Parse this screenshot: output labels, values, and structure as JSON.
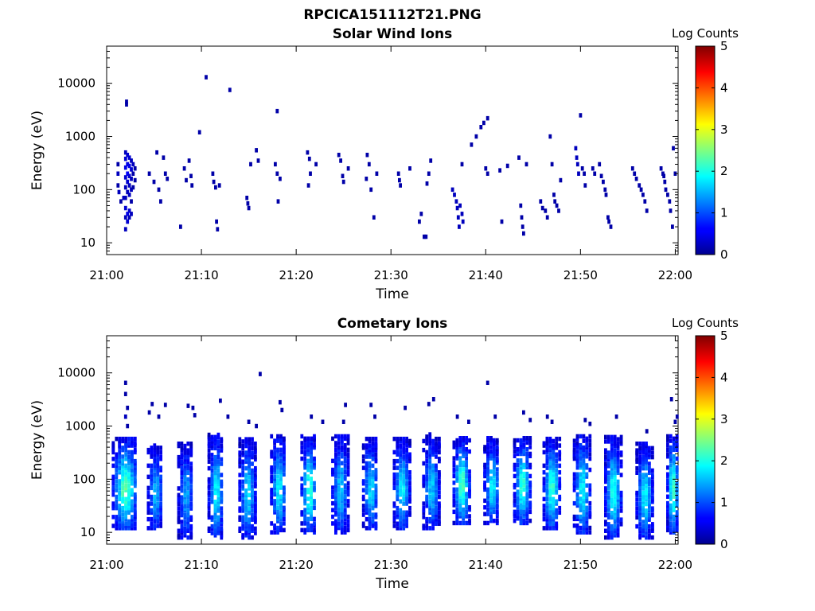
{
  "figure": {
    "title": "RPCICA151112T21.PNG"
  },
  "chart_data": [
    {
      "type": "heatmap",
      "title": "Solar Wind Ions",
      "xlabel": "Time",
      "ylabel": "Energy (eV)",
      "x_ticks": [
        "21:00",
        "21:10",
        "21:20",
        "21:30",
        "21:40",
        "21:50",
        "22:00"
      ],
      "x_range_minutes": [
        0,
        60.3
      ],
      "y_scale": "log",
      "y_range": [
        6,
        50000
      ],
      "y_ticks": [
        {
          "value": 10,
          "label": "10"
        },
        {
          "value": 100,
          "label": "100"
        },
        {
          "value": 1000,
          "label": "1000"
        },
        {
          "value": 10000,
          "label": "10000"
        }
      ],
      "colorbar": {
        "label": "Log Counts",
        "range": [
          0,
          5
        ],
        "ticks": [
          "0",
          "1",
          "2",
          "3",
          "4",
          "5"
        ],
        "colormap": "jet"
      },
      "cells": [
        [
          1.2,
          300,
          0.2
        ],
        [
          1.2,
          200,
          0.3
        ],
        [
          1.2,
          120,
          0.2
        ],
        [
          1.3,
          90,
          0.3
        ],
        [
          1.5,
          60,
          0.2
        ],
        [
          1.8,
          70,
          0.3
        ],
        [
          2.0,
          500,
          0.3
        ],
        [
          2.0,
          380,
          0.4
        ],
        [
          2.0,
          260,
          0.5
        ],
        [
          2.0,
          170,
          0.4
        ],
        [
          2.0,
          110,
          0.3
        ],
        [
          2.0,
          70,
          0.3
        ],
        [
          2.0,
          45,
          0.4
        ],
        [
          2.0,
          30,
          0.3
        ],
        [
          2.0,
          18,
          0.3
        ],
        [
          2.2,
          450,
          0.4
        ],
        [
          2.2,
          300,
          0.5
        ],
        [
          2.2,
          200,
          0.6
        ],
        [
          2.2,
          140,
          0.4
        ],
        [
          2.2,
          90,
          0.3
        ],
        [
          2.2,
          35,
          0.5
        ],
        [
          2.2,
          25,
          0.4
        ],
        [
          2.4,
          400,
          0.4
        ],
        [
          2.4,
          280,
          0.5
        ],
        [
          2.4,
          180,
          0.4
        ],
        [
          2.4,
          120,
          0.3
        ],
        [
          2.4,
          80,
          0.3
        ],
        [
          2.4,
          40,
          0.4
        ],
        [
          2.4,
          30,
          0.3
        ],
        [
          2.6,
          350,
          0.3
        ],
        [
          2.6,
          240,
          0.4
        ],
        [
          2.6,
          160,
          0.3
        ],
        [
          2.6,
          100,
          0.3
        ],
        [
          2.6,
          60,
          0.2
        ],
        [
          2.6,
          35,
          0.3
        ],
        [
          2.8,
          300,
          0.3
        ],
        [
          2.8,
          200,
          0.2
        ],
        [
          2.8,
          110,
          0.2
        ],
        [
          3.0,
          250,
          0.2
        ],
        [
          3.0,
          150,
          0.2
        ],
        [
          2.1,
          4500,
          0.2
        ],
        [
          2.1,
          4000,
          0.2
        ],
        [
          4.5,
          200,
          0.2
        ],
        [
          5.0,
          140,
          0.2
        ],
        [
          5.3,
          500,
          0.2
        ],
        [
          5.5,
          100,
          0.2
        ],
        [
          5.7,
          60,
          0.2
        ],
        [
          6.0,
          400,
          0.2
        ],
        [
          6.2,
          200,
          0.2
        ],
        [
          6.4,
          160,
          0.2
        ],
        [
          7.8,
          20,
          0.2
        ],
        [
          8.2,
          250,
          0.2
        ],
        [
          8.4,
          150,
          0.2
        ],
        [
          8.7,
          350,
          0.2
        ],
        [
          8.9,
          180,
          0.2
        ],
        [
          9.0,
          120,
          0.2
        ],
        [
          9.8,
          1200,
          0.2
        ],
        [
          10.5,
          13000,
          0.2
        ],
        [
          11.2,
          200,
          0.2
        ],
        [
          11.3,
          140,
          0.2
        ],
        [
          11.5,
          110,
          0.2
        ],
        [
          11.6,
          25,
          0.2
        ],
        [
          11.7,
          18,
          0.2
        ],
        [
          11.9,
          120,
          0.2
        ],
        [
          13.0,
          7500,
          0.2
        ],
        [
          14.8,
          70,
          0.2
        ],
        [
          14.9,
          55,
          0.2
        ],
        [
          15.0,
          45,
          0.2
        ],
        [
          15.2,
          300,
          0.2
        ],
        [
          15.8,
          550,
          0.2
        ],
        [
          16.0,
          350,
          0.2
        ],
        [
          18.0,
          3000,
          0.2
        ],
        [
          17.8,
          300,
          0.2
        ],
        [
          18.0,
          200,
          0.2
        ],
        [
          18.1,
          60,
          0.2
        ],
        [
          18.3,
          160,
          0.2
        ],
        [
          21.2,
          500,
          0.2
        ],
        [
          21.4,
          380,
          0.2
        ],
        [
          21.3,
          120,
          0.2
        ],
        [
          21.5,
          200,
          0.2
        ],
        [
          22.1,
          300,
          0.2
        ],
        [
          24.5,
          450,
          0.2
        ],
        [
          24.7,
          350,
          0.2
        ],
        [
          24.9,
          180,
          0.2
        ],
        [
          25.0,
          140,
          0.2
        ],
        [
          25.5,
          250,
          0.2
        ],
        [
          27.5,
          450,
          0.2
        ],
        [
          27.7,
          300,
          0.2
        ],
        [
          27.4,
          160,
          0.2
        ],
        [
          27.9,
          100,
          0.2
        ],
        [
          28.2,
          30,
          0.2
        ],
        [
          28.5,
          200,
          0.2
        ],
        [
          30.8,
          200,
          0.2
        ],
        [
          30.9,
          150,
          0.2
        ],
        [
          31.0,
          120,
          0.2
        ],
        [
          32.0,
          250,
          0.2
        ],
        [
          33.0,
          25,
          0.2
        ],
        [
          33.2,
          35,
          0.2
        ],
        [
          33.5,
          13,
          0.2
        ],
        [
          33.7,
          13,
          0.2
        ],
        [
          33.8,
          130,
          0.2
        ],
        [
          34.0,
          200,
          0.2
        ],
        [
          34.2,
          350,
          0.2
        ],
        [
          36.5,
          100,
          0.3
        ],
        [
          36.7,
          80,
          0.3
        ],
        [
          36.9,
          60,
          0.3
        ],
        [
          37.0,
          45,
          0.3
        ],
        [
          37.1,
          30,
          0.3
        ],
        [
          37.2,
          20,
          0.3
        ],
        [
          37.3,
          50,
          0.3
        ],
        [
          37.5,
          35,
          0.3
        ],
        [
          37.6,
          25,
          0.3
        ],
        [
          37.5,
          300,
          0.2
        ],
        [
          38.5,
          700,
          0.2
        ],
        [
          39.0,
          1000,
          0.2
        ],
        [
          39.5,
          1500,
          0.2
        ],
        [
          39.8,
          1800,
          0.2
        ],
        [
          40.2,
          2200,
          0.2
        ],
        [
          40.0,
          250,
          0.2
        ],
        [
          40.2,
          200,
          0.2
        ],
        [
          41.5,
          230,
          0.2
        ],
        [
          41.7,
          25,
          0.2
        ],
        [
          42.3,
          280,
          0.2
        ],
        [
          43.5,
          400,
          0.2
        ],
        [
          43.7,
          50,
          0.2
        ],
        [
          43.8,
          30,
          0.2
        ],
        [
          43.9,
          20,
          0.2
        ],
        [
          44.0,
          15,
          0.2
        ],
        [
          44.3,
          300,
          0.2
        ],
        [
          45.8,
          60,
          0.2
        ],
        [
          46.0,
          45,
          0.2
        ],
        [
          46.3,
          40,
          0.2
        ],
        [
          46.5,
          30,
          0.2
        ],
        [
          46.8,
          1000,
          0.2
        ],
        [
          47.0,
          300,
          0.2
        ],
        [
          47.2,
          80,
          0.2
        ],
        [
          47.3,
          60,
          0.2
        ],
        [
          47.5,
          50,
          0.2
        ],
        [
          47.7,
          40,
          0.2
        ],
        [
          47.9,
          150,
          0.2
        ],
        [
          49.5,
          600,
          0.3
        ],
        [
          49.6,
          400,
          0.3
        ],
        [
          49.7,
          300,
          0.3
        ],
        [
          49.8,
          200,
          0.3
        ],
        [
          50.0,
          2500,
          0.2
        ],
        [
          50.2,
          250,
          0.2
        ],
        [
          50.4,
          200,
          0.2
        ],
        [
          50.5,
          120,
          0.2
        ],
        [
          51.3,
          250,
          0.2
        ],
        [
          51.5,
          200,
          0.2
        ],
        [
          52.0,
          300,
          0.2
        ],
        [
          52.2,
          180,
          0.2
        ],
        [
          52.4,
          140,
          0.2
        ],
        [
          52.6,
          100,
          0.2
        ],
        [
          52.7,
          80,
          0.2
        ],
        [
          52.9,
          30,
          0.2
        ],
        [
          53.0,
          25,
          0.2
        ],
        [
          53.2,
          20,
          0.2
        ],
        [
          55.5,
          250,
          0.2
        ],
        [
          55.7,
          200,
          0.2
        ],
        [
          55.9,
          160,
          0.2
        ],
        [
          56.2,
          120,
          0.2
        ],
        [
          56.4,
          100,
          0.2
        ],
        [
          56.6,
          80,
          0.2
        ],
        [
          56.8,
          60,
          0.2
        ],
        [
          57.0,
          40,
          0.2
        ],
        [
          58.5,
          250,
          0.2
        ],
        [
          58.7,
          200,
          0.2
        ],
        [
          58.8,
          180,
          0.2
        ],
        [
          58.9,
          140,
          0.2
        ],
        [
          59.0,
          100,
          0.2
        ],
        [
          59.2,
          80,
          0.2
        ],
        [
          59.4,
          60,
          0.2
        ],
        [
          59.5,
          40,
          0.2
        ],
        [
          59.7,
          20,
          0.2
        ],
        [
          60.0,
          200,
          0.2
        ],
        [
          59.8,
          600,
          0.2
        ]
      ]
    },
    {
      "type": "heatmap",
      "title": "Cometary Ions",
      "xlabel": "Time",
      "ylabel": "Energy (eV)",
      "x_ticks": [
        "21:00",
        "21:10",
        "21:20",
        "21:30",
        "21:40",
        "21:50",
        "22:00"
      ],
      "x_range_minutes": [
        0,
        60.3
      ],
      "y_scale": "log",
      "y_range": [
        6,
        50000
      ],
      "y_ticks": [
        {
          "value": 10,
          "label": "10"
        },
        {
          "value": 100,
          "label": "100"
        },
        {
          "value": 1000,
          "label": "1000"
        },
        {
          "value": 10000,
          "label": "10000"
        }
      ],
      "colorbar": {
        "label": "Log Counts",
        "range": [
          0,
          5
        ],
        "ticks": [
          "0",
          "1",
          "2",
          "3",
          "4",
          "5"
        ],
        "colormap": "jet"
      },
      "bursts": [
        {
          "t": 2.0,
          "elo": 12,
          "ehi": 600,
          "peak": 2.0,
          "width": 2.6
        },
        {
          "t": 5.2,
          "elo": 12,
          "ehi": 450,
          "peak": 1.2,
          "width": 1.6
        },
        {
          "t": 8.4,
          "elo": 8,
          "ehi": 500,
          "peak": 1.1,
          "width": 1.6
        },
        {
          "t": 11.6,
          "elo": 8,
          "ehi": 700,
          "peak": 1.5,
          "width": 1.6
        },
        {
          "t": 14.9,
          "elo": 8,
          "ehi": 600,
          "peak": 1.4,
          "width": 1.7
        },
        {
          "t": 18.2,
          "elo": 10,
          "ehi": 700,
          "peak": 1.5,
          "width": 1.6
        },
        {
          "t": 21.4,
          "elo": 10,
          "ehi": 650,
          "peak": 1.8,
          "width": 1.6
        },
        {
          "t": 24.7,
          "elo": 10,
          "ehi": 700,
          "peak": 1.3,
          "width": 1.7
        },
        {
          "t": 27.9,
          "elo": 12,
          "ehi": 600,
          "peak": 1.4,
          "width": 1.6
        },
        {
          "t": 31.2,
          "elo": 12,
          "ehi": 600,
          "peak": 1.5,
          "width": 1.7
        },
        {
          "t": 34.3,
          "elo": 12,
          "ehi": 700,
          "peak": 1.3,
          "width": 1.7
        },
        {
          "t": 37.5,
          "elo": 15,
          "ehi": 650,
          "peak": 1.9,
          "width": 1.7
        },
        {
          "t": 40.7,
          "elo": 15,
          "ehi": 600,
          "peak": 1.5,
          "width": 1.6
        },
        {
          "t": 43.9,
          "elo": 15,
          "ehi": 650,
          "peak": 1.8,
          "width": 1.7
        },
        {
          "t": 47.0,
          "elo": 12,
          "ehi": 600,
          "peak": 1.8,
          "width": 1.7
        },
        {
          "t": 50.2,
          "elo": 10,
          "ehi": 700,
          "peak": 1.6,
          "width": 1.7
        },
        {
          "t": 53.5,
          "elo": 8,
          "ehi": 650,
          "peak": 1.7,
          "width": 1.7
        },
        {
          "t": 56.8,
          "elo": 8,
          "ehi": 500,
          "peak": 1.5,
          "width": 1.7
        },
        {
          "t": 59.8,
          "elo": 10,
          "ehi": 700,
          "peak": 1.9,
          "width": 1.2
        }
      ],
      "cells": [
        [
          2.0,
          6500,
          0.2
        ],
        [
          2.0,
          4000,
          0.2
        ],
        [
          2.2,
          2200,
          0.2
        ],
        [
          2.0,
          1500,
          0.3
        ],
        [
          2.2,
          1000,
          0.2
        ],
        [
          4.5,
          1800,
          0.2
        ],
        [
          5.5,
          1500,
          0.2
        ],
        [
          6.2,
          2500,
          0.2
        ],
        [
          4.8,
          2600,
          0.2
        ],
        [
          8.6,
          2400,
          0.2
        ],
        [
          9.1,
          2200,
          0.2
        ],
        [
          9.3,
          1600,
          0.2
        ],
        [
          12.0,
          3000,
          0.2
        ],
        [
          12.8,
          1500,
          0.2
        ],
        [
          15.0,
          1200,
          0.2
        ],
        [
          15.8,
          1000,
          0.2
        ],
        [
          16.2,
          9500,
          0.2
        ],
        [
          18.3,
          2800,
          0.2
        ],
        [
          18.5,
          2000,
          0.2
        ],
        [
          21.6,
          1500,
          0.2
        ],
        [
          22.8,
          1200,
          0.2
        ],
        [
          25.2,
          2500,
          0.2
        ],
        [
          25.0,
          1200,
          0.2
        ],
        [
          27.9,
          2500,
          0.2
        ],
        [
          28.3,
          1500,
          0.2
        ],
        [
          31.5,
          2200,
          0.2
        ],
        [
          34.5,
          3200,
          0.2
        ],
        [
          34.0,
          2600,
          0.2
        ],
        [
          37.0,
          1500,
          0.2
        ],
        [
          38.2,
          1200,
          0.2
        ],
        [
          40.2,
          6500,
          0.2
        ],
        [
          41.0,
          1500,
          0.2
        ],
        [
          44.0,
          1800,
          0.2
        ],
        [
          44.7,
          1300,
          0.2
        ],
        [
          46.5,
          1500,
          0.2
        ],
        [
          47.0,
          1200,
          0.2
        ],
        [
          50.5,
          1300,
          0.2
        ],
        [
          51.0,
          1100,
          0.2
        ],
        [
          53.8,
          1500,
          0.2
        ],
        [
          57.0,
          800,
          0.2
        ],
        [
          59.6,
          3200,
          0.2
        ],
        [
          60.2,
          1500,
          0.2
        ],
        [
          60.0,
          1200,
          0.2
        ]
      ]
    }
  ]
}
